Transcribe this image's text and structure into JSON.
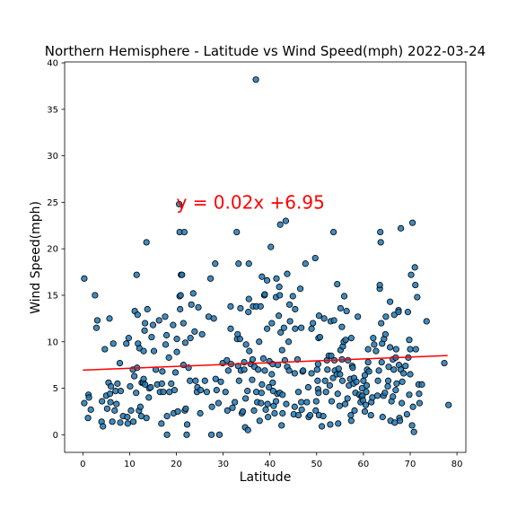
{
  "chart_data": {
    "type": "scatter",
    "title": "Northern Hemisphere - Latitude vs Wind Speed(mph) 2022-03-24",
    "xlabel": "Latitude",
    "ylabel": "Wind Speed(mph)",
    "xlim": [
      -3.9,
      81.9
    ],
    "ylim": [
      -1.9,
      40.1
    ],
    "xticks": [
      0,
      10,
      20,
      30,
      40,
      50,
      60,
      70,
      80
    ],
    "yticks": [
      0,
      5,
      10,
      15,
      20,
      25,
      30,
      35,
      40
    ],
    "grid": false,
    "colors": {
      "points": "#1f77b4",
      "point_edge": "#000000",
      "regression": "#ff0000",
      "annotation": "#ff0000"
    },
    "regression": {
      "slope": 0.02,
      "intercept": 6.95,
      "x_range": [
        0,
        78
      ],
      "equation": "y = 0.02x +6.95"
    },
    "points": [
      [
        0.3,
        3.4
      ],
      [
        0.3,
        16.8
      ],
      [
        1.1,
        1.8
      ],
      [
        1.2,
        4.3
      ],
      [
        1.3,
        4.0
      ],
      [
        1.7,
        2.7
      ],
      [
        2.6,
        15.0
      ],
      [
        2.9,
        11.5
      ],
      [
        3.1,
        12.3
      ],
      [
        4.0,
        1.4
      ],
      [
        4.1,
        3.6
      ],
      [
        4.3,
        0.9
      ],
      [
        4.7,
        9.2
      ],
      [
        5.0,
        4.2
      ],
      [
        5.2,
        2.8
      ],
      [
        5.5,
        5.6
      ],
      [
        5.7,
        12.5
      ],
      [
        5.8,
        4.4
      ],
      [
        5.9,
        3.5
      ],
      [
        6.0,
        5.2
      ],
      [
        6.3,
        1.4
      ],
      [
        6.5,
        9.8
      ],
      [
        6.8,
        2.6
      ],
      [
        7.0,
        4.7
      ],
      [
        7.2,
        3.3
      ],
      [
        7.4,
        5.5
      ],
      [
        7.9,
        7.7
      ],
      [
        8.0,
        1.3
      ],
      [
        8.1,
        4.7
      ],
      [
        8.6,
        2.0
      ],
      [
        9.3,
        9.8
      ],
      [
        9.5,
        1.9
      ],
      [
        9.6,
        1.2
      ],
      [
        9.8,
        10.4
      ],
      [
        10.1,
        5.2
      ],
      [
        10.3,
        2.6
      ],
      [
        10.7,
        7.0
      ],
      [
        10.8,
        1.4
      ],
      [
        11.0,
        6.3
      ],
      [
        11.1,
        13.3
      ],
      [
        11.4,
        4.5
      ],
      [
        11.5,
        17.2
      ],
      [
        11.6,
        7.2
      ],
      [
        11.7,
        12.9
      ],
      [
        11.8,
        9.8
      ],
      [
        12.0,
        2.6
      ],
      [
        12.1,
        9.3
      ],
      [
        12.3,
        3.0
      ],
      [
        12.5,
        2.0
      ],
      [
        12.6,
        5.6
      ],
      [
        12.9,
        5.6
      ],
      [
        13.0,
        6.0
      ],
      [
        13.0,
        9.0
      ],
      [
        13.2,
        11.2
      ],
      [
        13.3,
        5.4
      ],
      [
        13.3,
        12.0
      ],
      [
        13.6,
        20.7
      ],
      [
        13.6,
        1.8
      ],
      [
        13.8,
        13.5
      ],
      [
        14.1,
        4.0
      ],
      [
        14.2,
        5.0
      ],
      [
        14.5,
        5.1
      ],
      [
        14.7,
        10.5
      ],
      [
        15.0,
        11.8
      ],
      [
        15.2,
        9.0
      ],
      [
        15.6,
        7.0
      ],
      [
        15.9,
        5.4
      ],
      [
        16.3,
        12.3
      ],
      [
        16.5,
        4.6
      ],
      [
        16.8,
        1.2
      ],
      [
        16.9,
        5.5
      ],
      [
        17.0,
        6.8
      ],
      [
        17.2,
        4.6
      ],
      [
        17.6,
        12.7
      ],
      [
        17.7,
        9.7
      ],
      [
        17.9,
        10.7
      ],
      [
        18.0,
        2.0
      ],
      [
        18.0,
        0.0
      ],
      [
        18.4,
        8.3
      ],
      [
        18.5,
        4.6
      ],
      [
        18.9,
        5.5
      ],
      [
        19.3,
        11.8
      ],
      [
        19.4,
        2.3
      ],
      [
        19.6,
        4.8
      ],
      [
        19.8,
        6.7
      ],
      [
        20.1,
        8.9
      ],
      [
        20.1,
        10.3
      ],
      [
        20.3,
        2.5
      ],
      [
        20.6,
        24.8
      ],
      [
        20.7,
        21.8
      ],
      [
        20.7,
        14.9
      ],
      [
        20.8,
        13.5
      ],
      [
        20.9,
        15.0
      ],
      [
        21.0,
        17.2
      ],
      [
        21.2,
        17.2
      ],
      [
        21.5,
        12.0
      ],
      [
        21.5,
        7.5
      ],
      [
        21.7,
        21.8
      ],
      [
        21.8,
        2.6
      ],
      [
        21.9,
        9.9
      ],
      [
        22.0,
        2.8
      ],
      [
        22.2,
        0.0
      ],
      [
        22.3,
        1.1
      ],
      [
        22.6,
        7.2
      ],
      [
        22.9,
        5.8
      ],
      [
        23.0,
        10.4
      ],
      [
        23.2,
        14.0
      ],
      [
        23.6,
        15.2
      ],
      [
        23.9,
        11.1
      ],
      [
        24.1,
        5.8
      ],
      [
        24.4,
        4.6
      ],
      [
        24.5,
        5.1
      ],
      [
        24.7,
        13.7
      ],
      [
        25.1,
        2.3
      ],
      [
        25.2,
        4.8
      ],
      [
        25.5,
        10.8
      ],
      [
        26.1,
        5.8
      ],
      [
        26.5,
        4.6
      ],
      [
        26.9,
        12.7
      ],
      [
        27.3,
        16.8
      ],
      [
        27.5,
        0.0
      ],
      [
        27.6,
        3.0
      ],
      [
        28.0,
        12.5
      ],
      [
        28.3,
        18.4
      ],
      [
        28.4,
        6.0
      ],
      [
        28.6,
        4.8
      ],
      [
        29.0,
        3.4
      ],
      [
        29.2,
        0.0
      ],
      [
        29.5,
        5.7
      ],
      [
        29.9,
        7.7
      ],
      [
        30.5,
        4.6
      ],
      [
        30.8,
        8.0
      ],
      [
        30.9,
        2.6
      ],
      [
        31.1,
        6.9
      ],
      [
        31.6,
        13.8
      ],
      [
        31.6,
        11.4
      ],
      [
        31.7,
        7.6
      ],
      [
        32.0,
        2.9
      ],
      [
        32.5,
        3.5
      ],
      [
        32.9,
        21.8
      ],
      [
        33.0,
        10.3
      ],
      [
        33.1,
        10.8
      ],
      [
        33.2,
        7.4
      ],
      [
        33.3,
        18.4
      ],
      [
        33.4,
        5.8
      ],
      [
        33.6,
        10.3
      ],
      [
        33.7,
        13.6
      ],
      [
        33.8,
        6.9
      ],
      [
        34.0,
        2.3
      ],
      [
        34.2,
        2.5
      ],
      [
        34.5,
        7.8
      ],
      [
        34.5,
        7.0
      ],
      [
        34.7,
        0.8
      ],
      [
        34.8,
        3.9
      ],
      [
        34.9,
        9.7
      ],
      [
        35.2,
        4.7
      ],
      [
        35.3,
        0.5
      ],
      [
        35.4,
        13.2
      ],
      [
        35.5,
        18.4
      ],
      [
        35.5,
        14.6
      ],
      [
        35.6,
        9.0
      ],
      [
        35.9,
        7.6
      ],
      [
        36.2,
        5.9
      ],
      [
        36.3,
        8.1
      ],
      [
        36.4,
        13.8
      ],
      [
        36.6,
        2.6
      ],
      [
        36.7,
        7.3
      ],
      [
        37.0,
        38.2
      ],
      [
        37.1,
        13.8
      ],
      [
        37.1,
        4.6
      ],
      [
        37.3,
        3.5
      ],
      [
        37.5,
        7.0
      ],
      [
        37.7,
        10.0
      ],
      [
        37.8,
        1.5
      ],
      [
        38.0,
        13.8
      ],
      [
        38.1,
        3.4
      ],
      [
        38.2,
        4.5
      ],
      [
        38.3,
        5.4
      ],
      [
        38.3,
        17.0
      ],
      [
        38.6,
        8.2
      ],
      [
        38.8,
        15.0
      ],
      [
        38.9,
        6.9
      ],
      [
        38.9,
        15.1
      ],
      [
        39.1,
        2.7
      ],
      [
        39.4,
        16.6
      ],
      [
        39.4,
        11.4
      ],
      [
        39.5,
        3.3
      ],
      [
        39.6,
        1.9
      ],
      [
        39.8,
        5.1
      ],
      [
        39.9,
        7.9
      ],
      [
        40.2,
        20.2
      ],
      [
        40.4,
        12.0
      ],
      [
        40.4,
        6.5
      ],
      [
        40.6,
        7.6
      ],
      [
        40.6,
        5.6
      ],
      [
        40.7,
        4.7
      ],
      [
        40.8,
        3.1
      ],
      [
        41.0,
        2.3
      ],
      [
        41.3,
        14.8
      ],
      [
        41.3,
        3.6
      ],
      [
        41.4,
        16.8
      ],
      [
        41.6,
        4.4
      ],
      [
        41.7,
        7.5
      ],
      [
        41.9,
        12.8
      ],
      [
        42.0,
        15.9
      ],
      [
        42.1,
        4.5
      ],
      [
        42.1,
        15.0
      ],
      [
        42.2,
        22.6
      ],
      [
        42.3,
        11.0
      ],
      [
        42.5,
        1.0
      ],
      [
        42.6,
        9.1
      ],
      [
        42.7,
        4.3
      ],
      [
        42.7,
        2.3
      ],
      [
        43.0,
        11.5
      ],
      [
        43.2,
        8.0
      ],
      [
        43.4,
        23.0
      ],
      [
        43.5,
        3.3
      ],
      [
        43.7,
        7.3
      ],
      [
        43.7,
        17.3
      ],
      [
        44.0,
        10.0
      ],
      [
        44.1,
        6.9
      ],
      [
        44.2,
        14.0
      ],
      [
        44.3,
        12.2
      ],
      [
        44.9,
        14.9
      ],
      [
        45.1,
        2.2
      ],
      [
        45.3,
        3.0
      ],
      [
        45.3,
        6.6
      ],
      [
        45.4,
        11.4
      ],
      [
        45.4,
        13.5
      ],
      [
        45.9,
        8.1
      ],
      [
        46.1,
        4.6
      ],
      [
        46.1,
        2.1
      ],
      [
        46.5,
        15.7
      ],
      [
        46.7,
        11.5
      ],
      [
        46.7,
        3.5
      ],
      [
        46.8,
        2.7
      ],
      [
        47.0,
        6.8
      ],
      [
        47.1,
        6.9
      ],
      [
        47.6,
        18.4
      ],
      [
        47.9,
        3.5
      ],
      [
        48.2,
        5.1
      ],
      [
        48.3,
        1.9
      ],
      [
        48.6,
        2.1
      ],
      [
        48.9,
        6.6
      ],
      [
        48.9,
        11.4
      ],
      [
        49.2,
        12.0
      ],
      [
        49.7,
        19.0
      ],
      [
        49.8,
        2.6
      ],
      [
        49.9,
        3.6
      ],
      [
        50.1,
        7.0
      ],
      [
        50.2,
        5.8
      ],
      [
        50.3,
        7.6
      ],
      [
        50.3,
        4.9
      ],
      [
        50.4,
        10.4
      ],
      [
        50.4,
        4.5
      ],
      [
        50.5,
        2.1
      ],
      [
        50.5,
        12.8
      ],
      [
        50.7,
        10.5
      ],
      [
        51.1,
        0.9
      ],
      [
        51.4,
        2.0
      ],
      [
        51.6,
        12.5
      ],
      [
        51.8,
        5.8
      ],
      [
        52.0,
        4.6
      ],
      [
        52.2,
        8.0
      ],
      [
        52.3,
        7.0
      ],
      [
        52.6,
        8.5
      ],
      [
        52.8,
        5.3
      ],
      [
        52.9,
        1.1
      ],
      [
        53.0,
        12.2
      ],
      [
        53.1,
        8.5
      ],
      [
        53.2,
        3.6
      ],
      [
        53.5,
        6.1
      ],
      [
        53.6,
        21.8
      ],
      [
        53.7,
        12.3
      ],
      [
        53.8,
        8.0
      ],
      [
        53.9,
        6.9
      ],
      [
        54.3,
        6.5
      ],
      [
        54.4,
        16.2
      ],
      [
        54.5,
        4.4
      ],
      [
        54.6,
        1.2
      ],
      [
        54.7,
        7.1
      ],
      [
        54.9,
        3.1
      ],
      [
        55.0,
        6.5
      ],
      [
        55.1,
        9.1
      ],
      [
        55.1,
        13.6
      ],
      [
        55.4,
        11.6
      ],
      [
        55.4,
        8.1
      ],
      [
        55.5,
        5.8
      ],
      [
        55.6,
        9.5
      ],
      [
        55.8,
        10.0
      ],
      [
        55.9,
        14.9
      ],
      [
        56.1,
        3.3
      ],
      [
        56.2,
        10.2
      ],
      [
        56.4,
        13.3
      ],
      [
        56.6,
        3.9
      ],
      [
        56.7,
        8.0
      ],
      [
        56.9,
        5.3
      ],
      [
        57.2,
        6.0
      ],
      [
        57.3,
        2.1
      ],
      [
        57.4,
        1.5
      ],
      [
        57.4,
        10.4
      ],
      [
        57.6,
        7.4
      ],
      [
        57.7,
        7.2
      ],
      [
        57.9,
        5.5
      ],
      [
        58.0,
        6.1
      ],
      [
        58.1,
        2.6
      ],
      [
        58.3,
        4.5
      ],
      [
        58.5,
        5.7
      ],
      [
        58.8,
        12.7
      ],
      [
        59.1,
        4.3
      ],
      [
        59.4,
        3.5
      ],
      [
        59.6,
        4.1
      ],
      [
        59.7,
        5.0
      ],
      [
        59.8,
        4.2
      ],
      [
        59.9,
        3.7
      ],
      [
        60.0,
        5.8
      ],
      [
        60.3,
        6.4
      ],
      [
        60.3,
        2.5
      ],
      [
        60.5,
        3.2
      ],
      [
        60.6,
        4.6
      ],
      [
        60.7,
        5.3
      ],
      [
        60.8,
        7.0
      ],
      [
        61.0,
        9.2
      ],
      [
        61.0,
        7.8
      ],
      [
        61.2,
        6.8
      ],
      [
        61.6,
        2.1
      ],
      [
        61.7,
        3.5
      ],
      [
        61.9,
        4.0
      ],
      [
        62.1,
        10.4
      ],
      [
        62.3,
        9.7
      ],
      [
        62.7,
        9.0
      ],
      [
        63.0,
        4.2
      ],
      [
        63.1,
        5.8
      ],
      [
        63.3,
        6.9
      ],
      [
        63.5,
        15.7
      ],
      [
        63.5,
        16.1
      ],
      [
        63.6,
        21.8
      ],
      [
        63.7,
        20.7
      ],
      [
        63.8,
        12.0
      ],
      [
        63.9,
        7.8
      ],
      [
        64.0,
        9.8
      ],
      [
        64.1,
        1.9
      ],
      [
        64.3,
        4.2
      ],
      [
        64.4,
        10.3
      ],
      [
        64.6,
        4.5
      ],
      [
        64.7,
        10.8
      ],
      [
        64.8,
        12.7
      ],
      [
        65.2,
        5.2
      ],
      [
        65.3,
        5.8
      ],
      [
        65.4,
        7.3
      ],
      [
        65.7,
        14.3
      ],
      [
        65.7,
        9.4
      ],
      [
        65.8,
        1.5
      ],
      [
        66.0,
        3.6
      ],
      [
        66.3,
        4.1
      ],
      [
        66.3,
        8.1
      ],
      [
        66.5,
        7.0
      ],
      [
        66.6,
        12.9
      ],
      [
        66.7,
        1.3
      ],
      [
        66.9,
        4.8
      ],
      [
        66.9,
        8.3
      ],
      [
        67.0,
        9.2
      ],
      [
        67.1,
        5.5
      ],
      [
        67.5,
        13.4
      ],
      [
        67.5,
        13.2
      ],
      [
        67.6,
        7.5
      ],
      [
        67.7,
        1.8
      ],
      [
        67.8,
        1.5
      ],
      [
        68.0,
        7.0
      ],
      [
        68.0,
        22.2
      ],
      [
        68.2,
        3.4
      ],
      [
        68.3,
        5.7
      ],
      [
        68.6,
        6.6
      ],
      [
        69.0,
        7.4
      ],
      [
        69.3,
        2.2
      ],
      [
        69.5,
        13.2
      ],
      [
        69.6,
        8.3
      ],
      [
        69.8,
        4.3
      ],
      [
        69.8,
        10.2
      ],
      [
        70.0,
        9.2
      ],
      [
        70.0,
        6.5
      ],
      [
        70.2,
        17.2
      ],
      [
        70.4,
        1.0
      ],
      [
        70.5,
        22.8
      ],
      [
        70.6,
        3.0
      ],
      [
        70.8,
        0.3
      ],
      [
        71.0,
        18.0
      ],
      [
        71.1,
        16.1
      ],
      [
        71.2,
        9.2
      ],
      [
        71.5,
        14.8
      ],
      [
        71.8,
        5.4
      ],
      [
        71.9,
        4.4
      ],
      [
        72.0,
        3.4
      ],
      [
        72.5,
        5.4
      ],
      [
        73.5,
        12.2
      ],
      [
        77.3,
        7.7
      ],
      [
        78.2,
        3.2
      ]
    ]
  }
}
